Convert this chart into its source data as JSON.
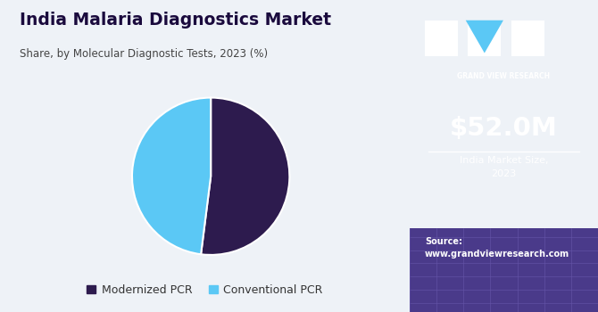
{
  "title": "India Malaria Diagnostics Market",
  "subtitle": "Share, by Molecular Diagnostic Tests, 2023 (%)",
  "pie_labels": [
    "Modernized PCR",
    "Conventional PCR"
  ],
  "pie_values": [
    52,
    48
  ],
  "pie_colors": [
    "#2d1b4e",
    "#5bc8f5"
  ],
  "left_bg": "#eef2f7",
  "right_bg": "#3b1f6e",
  "right_bottom_bg": "#4a3a8a",
  "market_size": "$52.0M",
  "market_label": "India Market Size,\n2023",
  "source_text": "Source:\nwww.grandviewresearch.com",
  "logo_text": "GRAND VIEW RESEARCH",
  "legend_dot_colors": [
    "#2d1b4e",
    "#5bc8f5"
  ],
  "title_color": "#1a0a3d",
  "subtitle_color": "#444444",
  "white": "#ffffff",
  "cyan": "#5bc8f5"
}
